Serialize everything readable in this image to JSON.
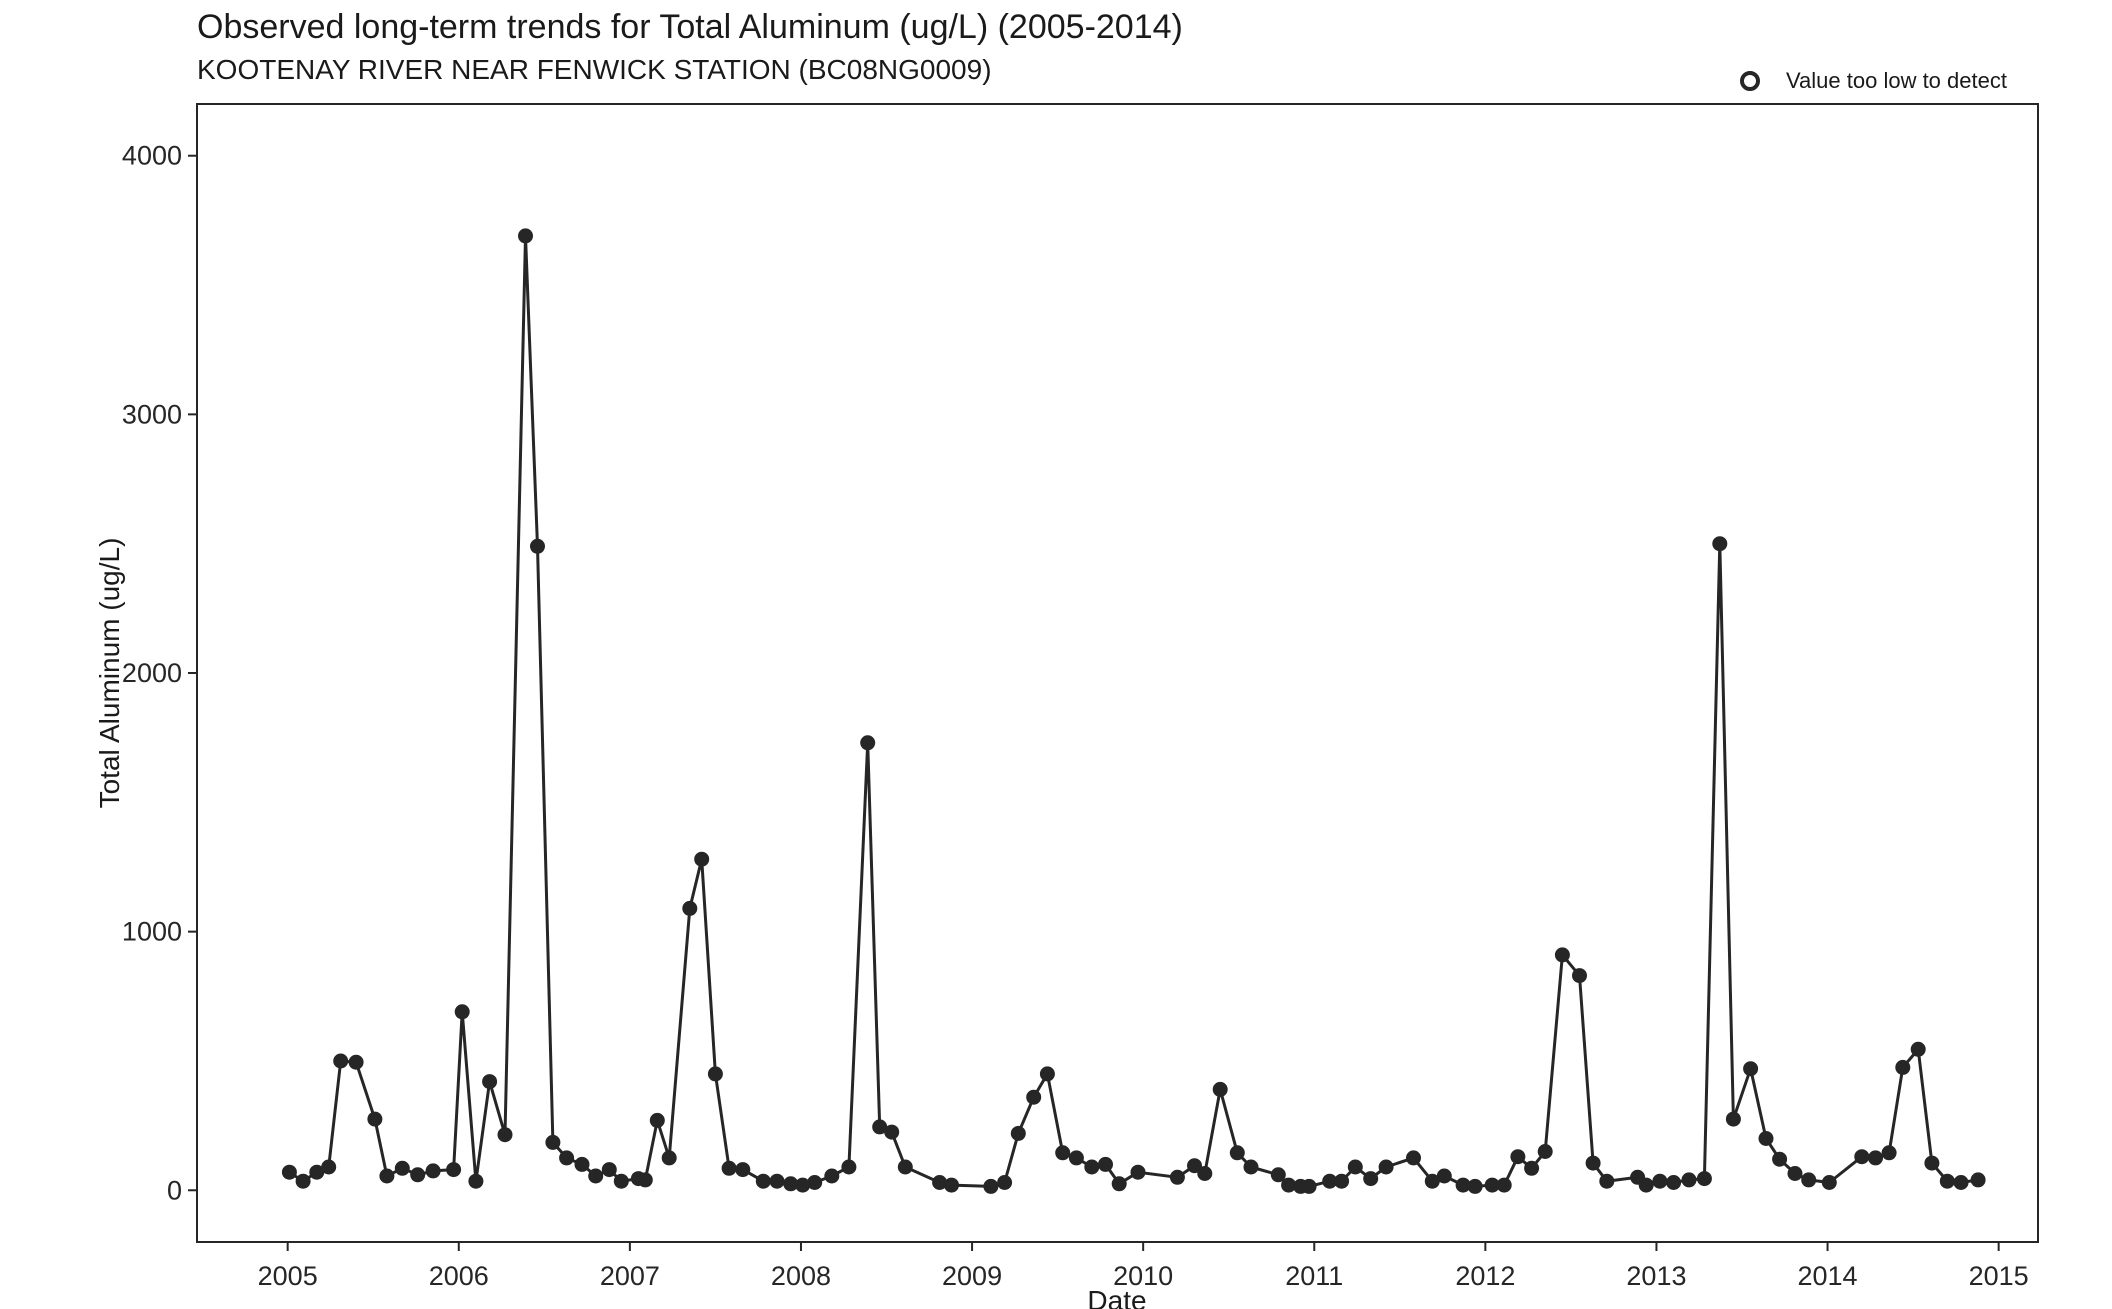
{
  "chart_data": {
    "type": "line",
    "title": "Observed long-term trends for Total Aluminum (ug/L) (2005-2014)",
    "subtitle": "KOOTENAY RIVER NEAR FENWICK STATION (BC08NG0009)",
    "xlabel": "Date",
    "ylabel": "Total Aluminum (ug/L)",
    "xlim": [
      2004.47,
      2015.23
    ],
    "ylim": [
      -200,
      4200
    ],
    "x_ticks": [
      2005,
      2006,
      2007,
      2008,
      2009,
      2010,
      2011,
      2012,
      2013,
      2014,
      2015
    ],
    "x_tick_labels": [
      "2005",
      "2006",
      "2007",
      "2008",
      "2009",
      "2010",
      "2011",
      "2012",
      "2013",
      "2014",
      "2015"
    ],
    "y_ticks": [
      0,
      1000,
      2000,
      3000,
      4000
    ],
    "y_tick_labels": [
      "0",
      "1000",
      "2000",
      "3000",
      "4000"
    ],
    "grid": false,
    "legend_position": "top-right",
    "legend": [
      {
        "label": "Value too low to detect",
        "marker": "open-circle"
      }
    ],
    "colors": {
      "line": "#262626",
      "point": "#262626",
      "axis": "#262626"
    },
    "series": [
      {
        "x": [
          2005.01,
          2005.09,
          2005.17,
          2005.24,
          2005.31,
          2005.4,
          2005.51,
          2005.58,
          2005.67,
          2005.76,
          2005.85,
          2005.97,
          2006.02,
          2006.1,
          2006.18,
          2006.27,
          2006.39,
          2006.46,
          2006.55,
          2006.63,
          2006.72,
          2006.8,
          2006.88,
          2006.95,
          2007.05,
          2007.09,
          2007.16,
          2007.23,
          2007.35,
          2007.42,
          2007.5,
          2007.58,
          2007.66,
          2007.78,
          2007.86,
          2007.94,
          2008.01,
          2008.08,
          2008.18,
          2008.28,
          2008.39,
          2008.46,
          2008.53,
          2008.61,
          2008.81,
          2008.88,
          2009.11,
          2009.19,
          2009.27,
          2009.36,
          2009.44,
          2009.53,
          2009.61,
          2009.7,
          2009.78,
          2009.86,
          2009.97,
          2010.2,
          2010.3,
          2010.36,
          2010.45,
          2010.55,
          2010.63,
          2010.79,
          2010.85,
          2010.92,
          2010.97,
          2011.09,
          2011.16,
          2011.24,
          2011.33,
          2011.42,
          2011.58,
          2011.69,
          2011.76,
          2011.87,
          2011.94,
          2012.04,
          2012.11,
          2012.19,
          2012.27,
          2012.35,
          2012.45,
          2012.55,
          2012.63,
          2012.71,
          2012.89,
          2012.94,
          2013.02,
          2013.1,
          2013.19,
          2013.28,
          2013.37,
          2013.45,
          2013.55,
          2013.64,
          2013.72,
          2013.81,
          2013.89,
          2014.01,
          2014.2,
          2014.28,
          2014.36,
          2014.44,
          2014.53,
          2014.61,
          2014.7,
          2014.78,
          2014.88
        ],
        "y": [
          70,
          35,
          70,
          90,
          500,
          495,
          275,
          55,
          85,
          60,
          75,
          80,
          690,
          35,
          420,
          215,
          3690,
          2490,
          185,
          125,
          100,
          55,
          80,
          35,
          45,
          40,
          270,
          125,
          1090,
          1280,
          450,
          85,
          80,
          35,
          35,
          25,
          20,
          30,
          55,
          90,
          1730,
          245,
          225,
          90,
          30,
          20,
          15,
          30,
          220,
          360,
          450,
          145,
          125,
          90,
          100,
          25,
          70,
          50,
          95,
          65,
          390,
          145,
          90,
          60,
          20,
          15,
          15,
          35,
          35,
          90,
          45,
          90,
          125,
          35,
          55,
          20,
          15,
          20,
          20,
          130,
          85,
          150,
          910,
          830,
          105,
          35,
          50,
          20,
          35,
          30,
          40,
          45,
          2500,
          275,
          470,
          200,
          120,
          65,
          40,
          30,
          130,
          125,
          145,
          475,
          545,
          105,
          35,
          30,
          40
        ]
      }
    ]
  }
}
